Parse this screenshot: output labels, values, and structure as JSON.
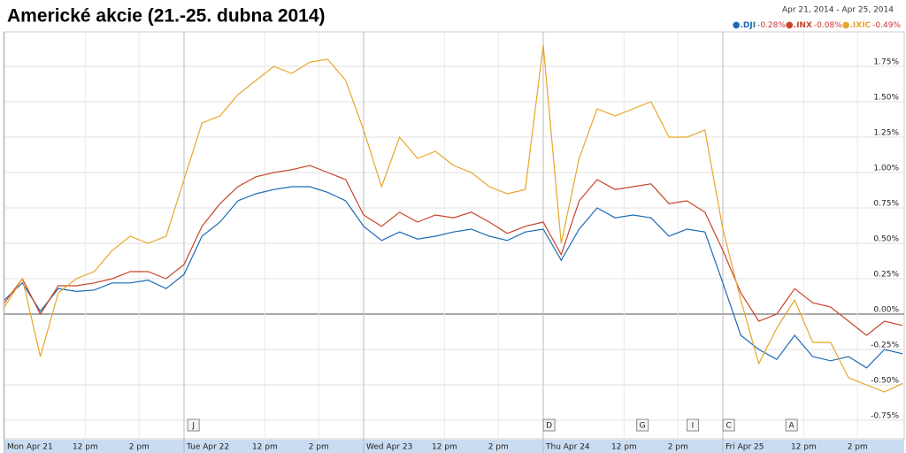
{
  "chart_data": {
    "type": "line",
    "title": "Americké akcie (21.-25. dubna 2014)",
    "date_range": "Apr 21, 2014  -  Apr 25, 2014",
    "x": [
      0,
      0.1,
      0.2,
      0.3,
      0.4,
      0.5,
      0.6,
      0.7,
      0.8,
      0.9,
      1,
      1.1,
      1.2,
      1.3,
      1.4,
      1.5,
      1.6,
      1.7,
      1.8,
      1.9,
      2,
      2.1,
      2.2,
      2.3,
      2.4,
      2.5,
      2.6,
      2.7,
      2.8,
      2.9,
      3,
      3.1,
      3.2,
      3.3,
      3.4,
      3.5,
      3.6,
      3.7,
      3.8,
      3.9,
      4,
      4.1,
      4.2,
      4.3,
      4.4,
      4.5,
      4.6,
      4.7,
      4.8,
      4.9,
      5
    ],
    "xlim": [
      0,
      5
    ],
    "xticks": [
      {
        "value": 0,
        "label": "Mon Apr 21"
      },
      {
        "value": 0.45,
        "label": "12 pm"
      },
      {
        "value": 0.75,
        "label": "2 pm"
      },
      {
        "value": 1,
        "label": "Tue Apr 22"
      },
      {
        "value": 1.45,
        "label": "12 pm"
      },
      {
        "value": 1.75,
        "label": "2 pm"
      },
      {
        "value": 2,
        "label": "Wed Apr 23"
      },
      {
        "value": 2.45,
        "label": "12 pm"
      },
      {
        "value": 2.75,
        "label": "2 pm"
      },
      {
        "value": 3,
        "label": "Thu Apr 24"
      },
      {
        "value": 3.45,
        "label": "12 pm"
      },
      {
        "value": 3.75,
        "label": "2 pm"
      },
      {
        "value": 4,
        "label": "Fri Apr 25"
      },
      {
        "value": 4.45,
        "label": "12 pm"
      },
      {
        "value": 4.75,
        "label": "2 pm"
      }
    ],
    "ylim": [
      -0.8,
      2.0
    ],
    "yticks": [
      {
        "value": -0.75,
        "label": "-0.75%"
      },
      {
        "value": -0.5,
        "label": "-0.50%"
      },
      {
        "value": -0.25,
        "label": "-0.25%"
      },
      {
        "value": 0,
        "label": "0.00%"
      },
      {
        "value": 0.25,
        "label": "0.25%"
      },
      {
        "value": 0.5,
        "label": "0.50%"
      },
      {
        "value": 0.75,
        "label": "0.75%"
      },
      {
        "value": 1,
        "label": "1.00%"
      },
      {
        "value": 1.25,
        "label": "1.25%"
      },
      {
        "value": 1.5,
        "label": "1.50%"
      },
      {
        "value": 1.75,
        "label": "1.75%"
      }
    ],
    "grid": true,
    "events": [
      {
        "label": "J",
        "x": 1.05
      },
      {
        "label": "D",
        "x": 3.03
      },
      {
        "label": "G",
        "x": 3.55
      },
      {
        "label": "I",
        "x": 3.83
      },
      {
        "label": "C",
        "x": 4.03
      },
      {
        "label": "A",
        "x": 4.38
      }
    ],
    "series": [
      {
        "name": ".DJI",
        "change_label": "-0.28%",
        "color": "#1c6ab5",
        "values": [
          0.1,
          0.22,
          0.02,
          0.18,
          0.16,
          0.17,
          0.22,
          0.22,
          0.24,
          0.18,
          0.28,
          0.55,
          0.65,
          0.8,
          0.85,
          0.88,
          0.9,
          0.9,
          0.86,
          0.8,
          0.62,
          0.52,
          0.58,
          0.53,
          0.55,
          0.58,
          0.6,
          0.55,
          0.52,
          0.58,
          0.6,
          0.38,
          0.6,
          0.75,
          0.68,
          0.7,
          0.68,
          0.55,
          0.6,
          0.58,
          0.22,
          -0.15,
          -0.25,
          -0.32,
          -0.15,
          -0.3,
          -0.33,
          -0.3,
          -0.38,
          -0.25,
          -0.28
        ]
      },
      {
        "name": ".INX",
        "change_label": "-0.08%",
        "color": "#c8442a",
        "values": [
          0.08,
          0.25,
          0.0,
          0.2,
          0.2,
          0.22,
          0.25,
          0.3,
          0.3,
          0.25,
          0.35,
          0.62,
          0.78,
          0.9,
          0.97,
          1.0,
          1.02,
          1.05,
          1.0,
          0.95,
          0.7,
          0.62,
          0.72,
          0.65,
          0.7,
          0.68,
          0.72,
          0.65,
          0.57,
          0.62,
          0.65,
          0.42,
          0.8,
          0.95,
          0.88,
          0.9,
          0.92,
          0.78,
          0.8,
          0.72,
          0.45,
          0.15,
          -0.05,
          0.0,
          0.18,
          0.08,
          0.05,
          -0.05,
          -0.15,
          -0.05,
          -0.08
        ]
      },
      {
        "name": ".IXIC",
        "change_label": "-0.49%",
        "color": "#e8a629",
        "values": [
          0.05,
          0.25,
          -0.3,
          0.15,
          0.25,
          0.3,
          0.45,
          0.55,
          0.5,
          0.55,
          0.95,
          1.35,
          1.4,
          1.55,
          1.65,
          1.75,
          1.7,
          1.78,
          1.8,
          1.65,
          1.3,
          0.9,
          1.25,
          1.1,
          1.15,
          1.05,
          1.0,
          0.9,
          0.85,
          0.88,
          1.9,
          0.5,
          1.1,
          1.45,
          1.4,
          1.45,
          1.5,
          1.25,
          1.25,
          1.3,
          0.6,
          0.1,
          -0.35,
          -0.1,
          0.1,
          -0.2,
          -0.2,
          -0.45,
          -0.5,
          -0.55,
          -0.49
        ]
      }
    ]
  }
}
